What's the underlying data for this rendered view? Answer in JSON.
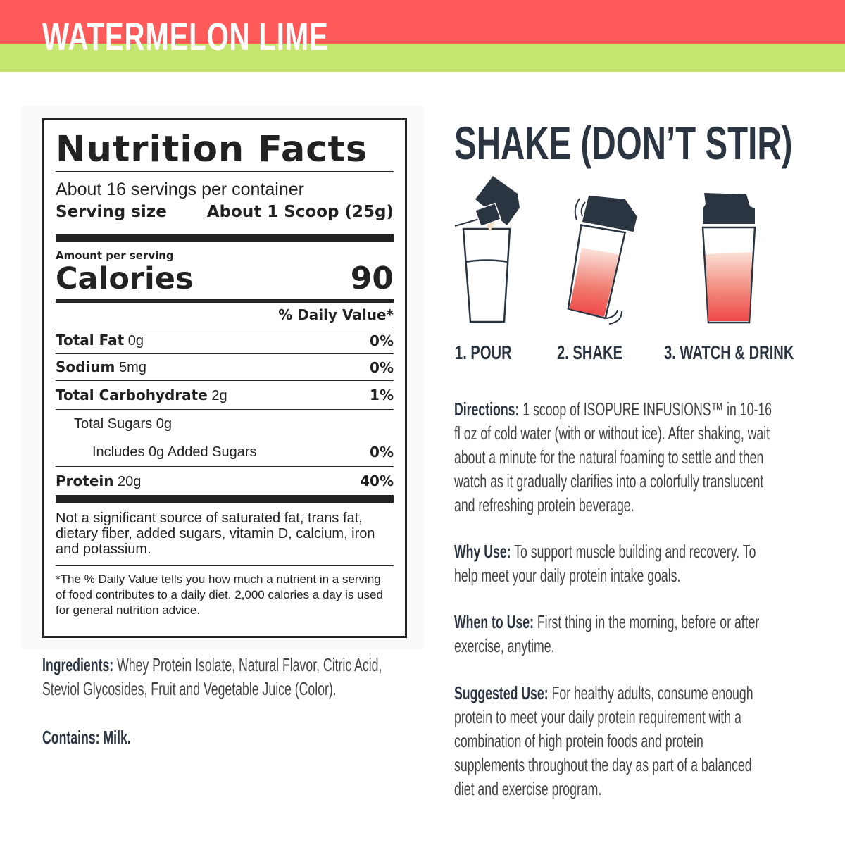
{
  "header": {
    "flavor": "WATERMELON LIME",
    "colors": {
      "red": "#fe5a5a",
      "green": "#c4e66e"
    }
  },
  "nutrition": {
    "title": "Nutrition Facts",
    "servings": "About 16 servings per container",
    "serving_size_label": "Serving size",
    "serving_size_value": "About 1 Scoop (25g)",
    "amount_per_serving": "Amount per serving",
    "calories_label": "Calories",
    "calories_value": "90",
    "dv_header": "% Daily Value*",
    "rows": [
      {
        "label": "Total Fat",
        "amount": "0g",
        "dv": "0%"
      },
      {
        "label": "Sodium",
        "amount": "5mg",
        "dv": "0%"
      },
      {
        "label": "Total Carbohydrate",
        "amount": "2g",
        "dv": "1%"
      },
      {
        "label": "Total Sugars 0g",
        "amount": "",
        "dv": ""
      },
      {
        "label": "Includes 0g Added Sugars",
        "amount": "",
        "dv": "0%"
      },
      {
        "label": "Protein",
        "amount": "20g",
        "dv": "40%"
      }
    ],
    "note": "Not a significant source of saturated fat, trans fat, dietary fiber, added sugars, vitamin D, calcium, iron and potassium.",
    "footnote": "*The % Daily Value tells you how much a nutrient in a serving of food contributes to a daily diet. 2,000 calories a day is used for general nutrition advice."
  },
  "ingredients": {
    "label": "Ingredients:",
    "text": "Whey Protein Isolate, Natural Flavor, Citric Acid, Steviol Glycosides, Fruit and Vegetable Juice (Color)."
  },
  "contains": "Contains: Milk.",
  "shake": {
    "title": "SHAKE (DON’T STIR)",
    "steps": [
      "1. POUR",
      "2. SHAKE",
      "3. WATCH & DRINK"
    ],
    "colors": {
      "lid": "#2b3542",
      "liquid": "#ef4848"
    }
  },
  "info": [
    {
      "label": "Directions:",
      "text": "1 scoop of ISOPURE INFUSIONS™ in 10-16 fl oz of cold water (with or without ice). After shaking, wait about a minute for the natural foaming to settle and then watch as it gradually clarifies into a colorfully translucent and refreshing protein beverage."
    },
    {
      "label": "Why Use:",
      "text": "To support muscle building and recovery. To help meet your daily protein intake goals."
    },
    {
      "label": "When to Use:",
      "text": "First thing in the morning, before or after exercise, anytime."
    },
    {
      "label": "Suggested Use:",
      "text": "For healthy adults, consume enough protein to meet your daily protein requirement with a combination of high protein foods and protein supplements throughout the day as part of a balanced diet and exercise program."
    }
  ]
}
